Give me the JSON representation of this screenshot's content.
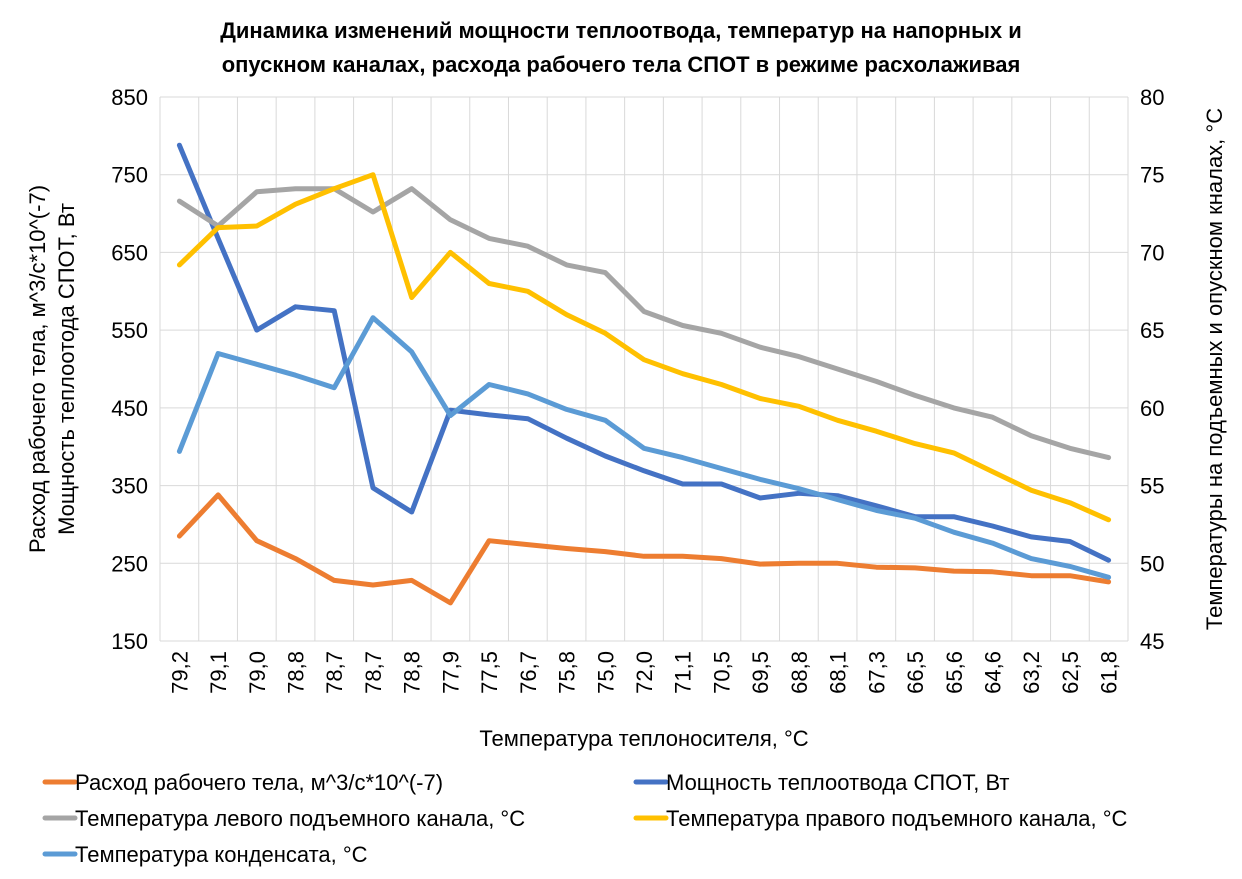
{
  "chart_data": {
    "type": "line",
    "title": [
      "Динамика изменений мощности теплоотвода, температур на напорных и",
      "опускном каналах,  расхода рабочего тела СПОТ в режиме расхолаживая"
    ],
    "xlabel": "Температура теплоносителя, °C",
    "ylabel_left": [
      "Расход рабочего тела, м^3/с*10^(-7)",
      "Мощность теплоотода СПОТ, Вт"
    ],
    "ylabel_right": "Температуры на подъемных и опускном кналах, °C",
    "ylim_left": [
      150,
      850
    ],
    "yticks_left": [
      150,
      250,
      350,
      450,
      550,
      650,
      750,
      850
    ],
    "ylim_right": [
      45,
      80
    ],
    "yticks_right": [
      45,
      50,
      55,
      60,
      65,
      70,
      75,
      80
    ],
    "grid": true,
    "legend_position": "bottom",
    "categories": [
      "79,2",
      "79,1",
      "79,0",
      "78,8",
      "78,7",
      "78,7",
      "78,8",
      "77,9",
      "77,5",
      "76,7",
      "75,8",
      "75,0",
      "72,0",
      "71,1",
      "70,5",
      "69,5",
      "68,8",
      "68,1",
      "67,3",
      "66,5",
      "65,6",
      "64,6",
      "63,2",
      "62,5",
      "61,8"
    ],
    "series": [
      {
        "name": "Расход рабочего тела, м^3/с*10^(-7)",
        "axis": "left",
        "color": "#ED7D31",
        "values": [
          285,
          338,
          279,
          256,
          228,
          222,
          228,
          199,
          279,
          274,
          269,
          265,
          259,
          259,
          256,
          249,
          250,
          250,
          245,
          244,
          240,
          239,
          234,
          234,
          226
        ]
      },
      {
        "name": "Мощность теплоотвода СПОТ, Вт",
        "axis": "left",
        "color": "#4472C4",
        "values": [
          788,
          668,
          550,
          580,
          575,
          347,
          316,
          447,
          441,
          436,
          411,
          388,
          369,
          352,
          352,
          334,
          340,
          337,
          324,
          310,
          310,
          298,
          284,
          278,
          254
        ]
      },
      {
        "name": "Температура левого подъемного канала, °C",
        "axis": "right",
        "color": "#A5A5A5",
        "values": [
          73.3,
          71.7,
          73.9,
          74.1,
          74.1,
          72.6,
          74.1,
          72.1,
          70.9,
          70.4,
          69.2,
          68.7,
          66.2,
          65.3,
          64.8,
          63.9,
          63.3,
          62.5,
          61.7,
          60.8,
          60.0,
          59.4,
          58.2,
          57.4,
          56.8
        ]
      },
      {
        "name": "Температура правого подъемного канала, °C",
        "axis": "right",
        "color": "#FFC000",
        "values": [
          69.2,
          71.6,
          71.7,
          73.1,
          74.1,
          75.0,
          67.1,
          70.0,
          68.0,
          67.5,
          66.0,
          64.8,
          63.1,
          62.2,
          61.5,
          60.6,
          60.1,
          59.2,
          58.5,
          57.7,
          57.1,
          55.9,
          54.7,
          53.9,
          52.8
        ]
      },
      {
        "name": "Температура конденсата, °C",
        "axis": "right",
        "color": "#5B9BD5",
        "values": [
          57.2,
          63.5,
          62.8,
          62.1,
          61.3,
          65.8,
          63.6,
          59.5,
          61.5,
          60.9,
          59.9,
          59.2,
          57.4,
          56.8,
          56.1,
          55.4,
          54.8,
          54.1,
          53.4,
          52.9,
          52.0,
          51.3,
          50.3,
          49.8,
          49.1
        ]
      }
    ]
  }
}
